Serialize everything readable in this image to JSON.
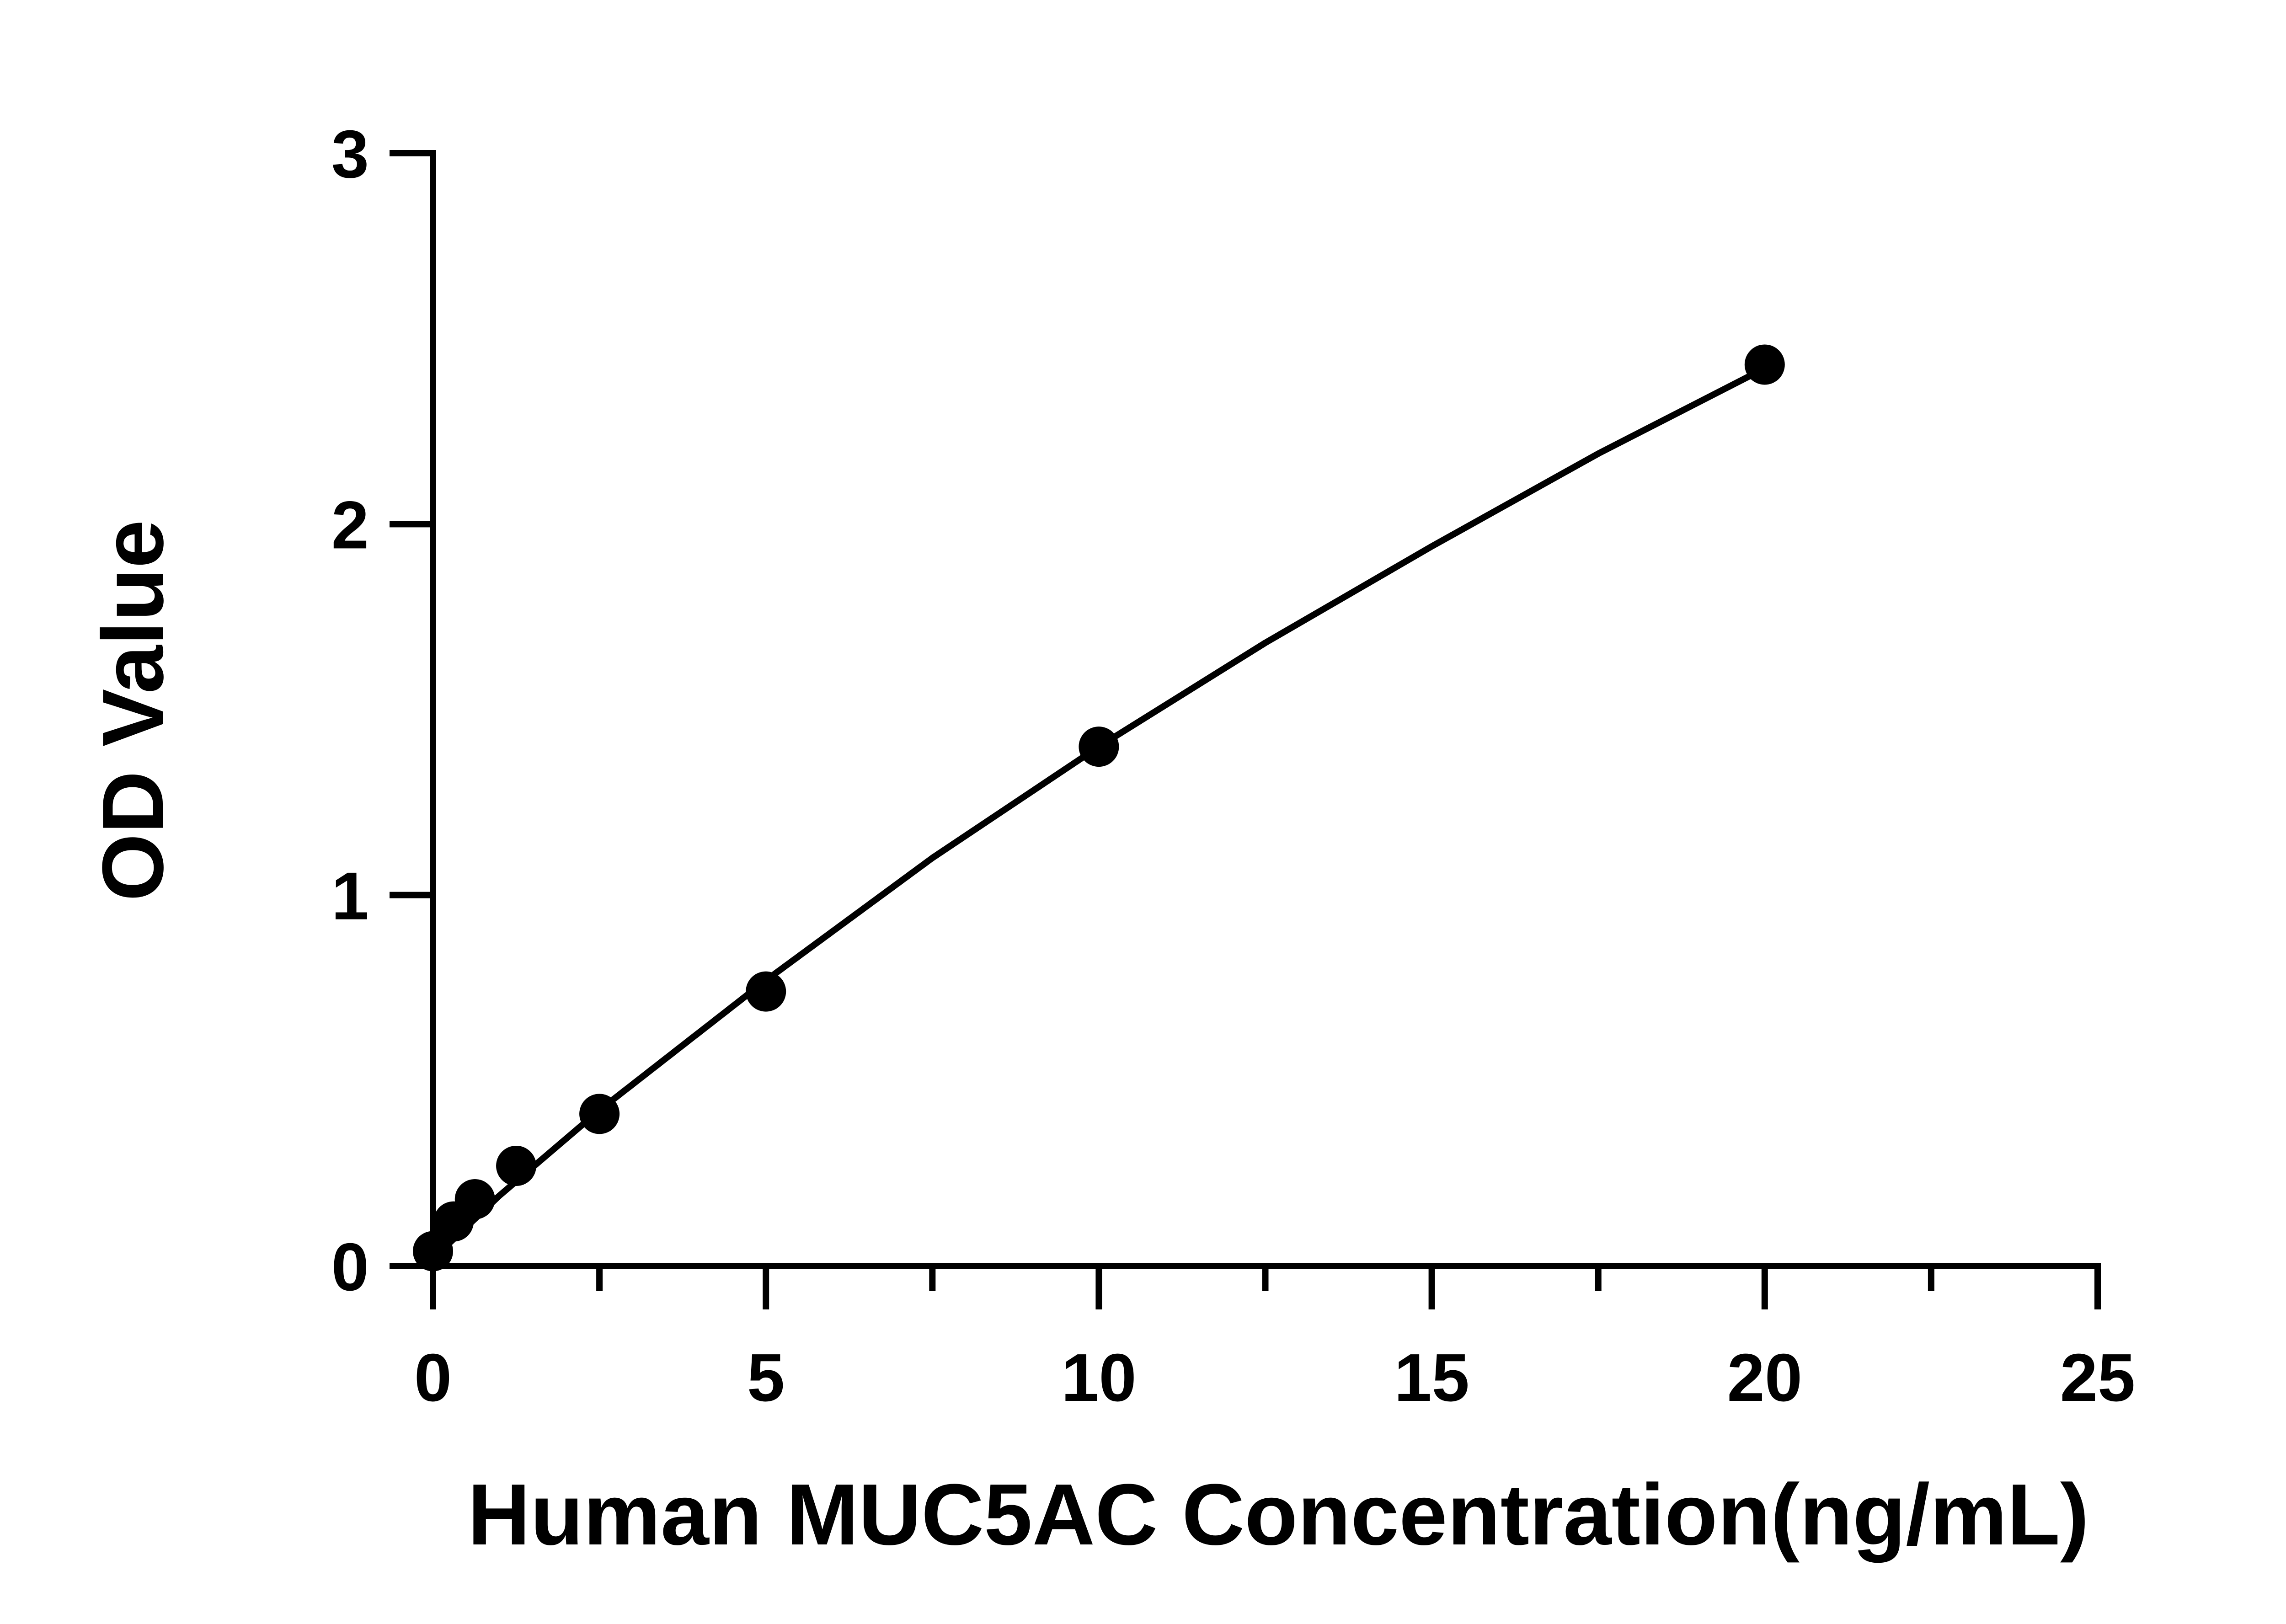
{
  "chart_data": {
    "type": "scatter",
    "title": "",
    "xlabel": "Human MUC5AC Concentration(ng/mL)",
    "ylabel": "OD Value",
    "xlim": [
      0,
      25
    ],
    "ylim": [
      0,
      3
    ],
    "x_ticks": [
      0,
      5,
      10,
      15,
      20,
      25
    ],
    "x_tick_labels": [
      "0",
      "5",
      "10",
      "15",
      "20",
      "25"
    ],
    "x_minor_ticks": [
      2.5,
      7.5,
      12.5,
      17.5,
      22.5
    ],
    "y_ticks": [
      0,
      1,
      2,
      3
    ],
    "y_tick_labels": [
      "0",
      "1",
      "2",
      "3"
    ],
    "grid": false,
    "legend": "none",
    "series": [
      {
        "points": [
          {
            "x": 0,
            "y": 0.04
          },
          {
            "x": 0.31,
            "y": 0.12
          },
          {
            "x": 0.63,
            "y": 0.18
          },
          {
            "x": 1.25,
            "y": 0.27
          },
          {
            "x": 2.5,
            "y": 0.41
          },
          {
            "x": 5,
            "y": 0.74
          },
          {
            "x": 10,
            "y": 1.4
          },
          {
            "x": 20,
            "y": 2.43
          }
        ],
        "fit_curve": [
          {
            "x": 0,
            "y": 0.02
          },
          {
            "x": 1,
            "y": 0.19
          },
          {
            "x": 2.5,
            "y": 0.42
          },
          {
            "x": 5,
            "y": 0.77
          },
          {
            "x": 7.5,
            "y": 1.1
          },
          {
            "x": 10,
            "y": 1.4
          },
          {
            "x": 12.5,
            "y": 1.68
          },
          {
            "x": 15,
            "y": 1.94
          },
          {
            "x": 17.5,
            "y": 2.19
          },
          {
            "x": 20,
            "y": 2.42
          }
        ],
        "color": "#000000"
      }
    ]
  }
}
